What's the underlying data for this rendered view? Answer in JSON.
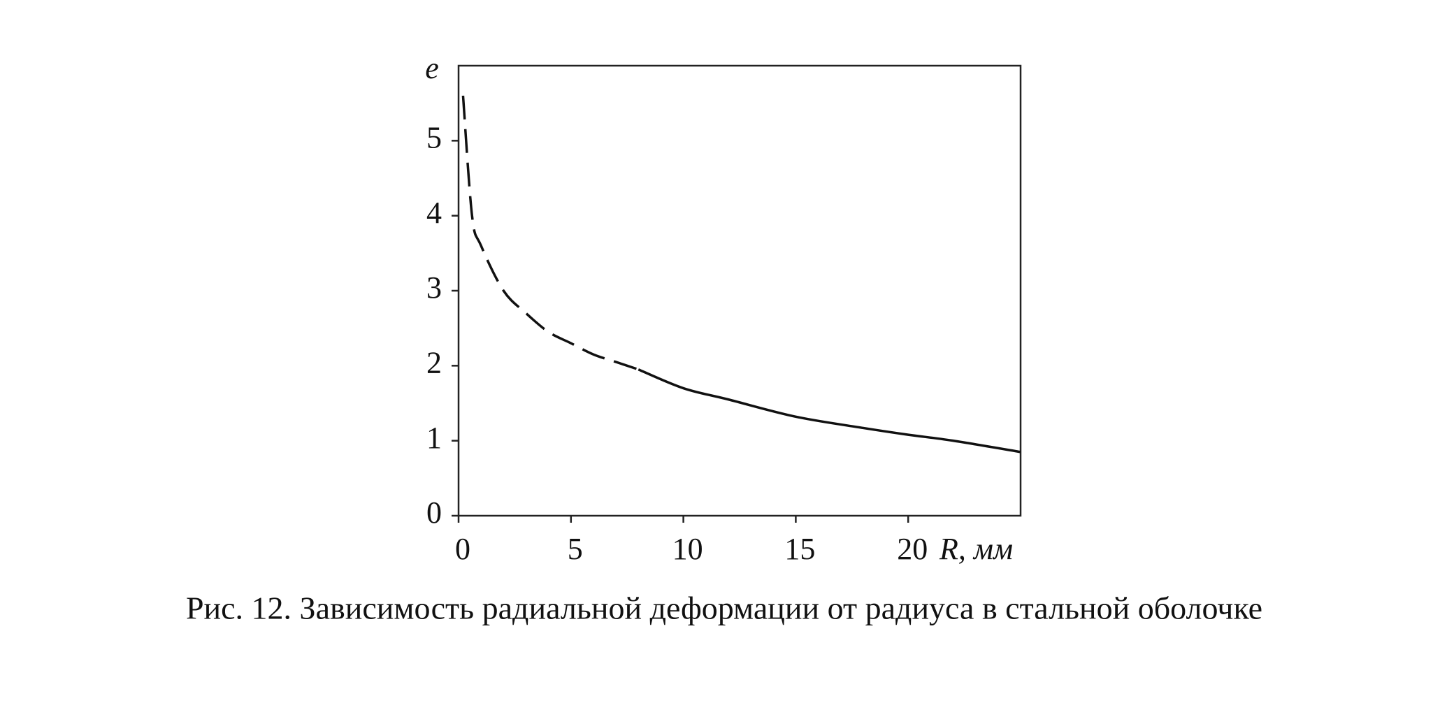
{
  "chart_data": {
    "type": "line",
    "y_label": "e",
    "x_label": "R, мм",
    "caption": "Рис. 12. Зависимость радиальной деформации от радиуса в стальной оболочке",
    "xlim": [
      0,
      25
    ],
    "xticks": [
      0,
      5,
      10,
      15,
      20
    ],
    "ylim": [
      0,
      6
    ],
    "yticks": [
      0,
      1,
      2,
      3,
      4,
      5
    ],
    "grid": false,
    "series": [
      {
        "color": "#111111",
        "dash": true,
        "x": [
          0.2,
          0.6,
          1,
          2,
          3,
          4,
          5,
          6,
          7,
          8
        ],
        "y": [
          5.6,
          4.0,
          3.6,
          3.0,
          2.7,
          2.45,
          2.3,
          2.15,
          2.05,
          1.95
        ]
      },
      {
        "color": "#111111",
        "dash": false,
        "x": [
          8,
          10,
          12,
          15,
          18,
          20,
          22,
          25
        ],
        "y": [
          1.95,
          1.7,
          1.55,
          1.32,
          1.17,
          1.08,
          1.0,
          0.85
        ]
      }
    ]
  }
}
